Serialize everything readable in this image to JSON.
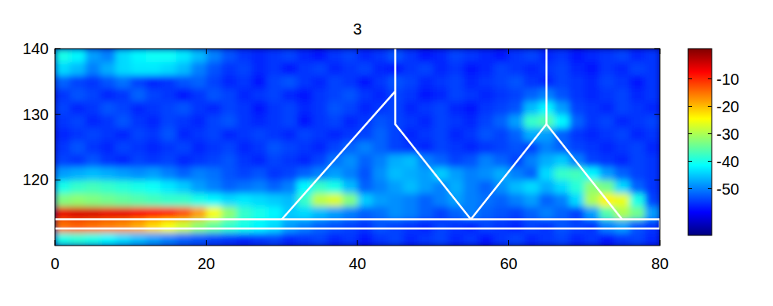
{
  "chart_data": {
    "type": "heatmap",
    "title": "3",
    "xlim": [
      0,
      80
    ],
    "xticks": [
      0,
      20,
      40,
      60,
      80
    ],
    "ylim": [
      110,
      140
    ],
    "yticks": [
      120,
      130,
      140
    ],
    "colorbar_lim": [
      -67,
      1
    ],
    "colorbar_ticks": [
      -10,
      -20,
      -30,
      -40,
      -50
    ],
    "x": [
      1,
      3,
      5,
      7,
      9,
      11,
      13,
      15,
      17,
      19,
      21,
      23,
      25,
      27,
      29,
      31,
      33,
      35,
      37,
      39,
      41,
      43,
      45,
      47,
      49,
      51,
      53,
      55,
      57,
      59,
      61,
      63,
      65,
      67,
      69,
      71,
      73,
      75,
      77,
      79
    ],
    "y": [
      111,
      113,
      115,
      117,
      119,
      121,
      123,
      125,
      127,
      129,
      131,
      133,
      135,
      137,
      139
    ],
    "z": [
      [
        -40,
        -39,
        -40,
        -42,
        -44,
        -46,
        -48,
        -50,
        -52,
        -53,
        -54,
        -55,
        -56,
        -55,
        -54,
        -56,
        -55,
        -54,
        -56,
        -55,
        -57,
        -55,
        -54,
        -56,
        -55,
        -54,
        -56,
        -55,
        -57,
        -55,
        -54,
        -56,
        -55,
        -54,
        -56,
        -55,
        -57,
        -55,
        -54,
        -56
      ],
      [
        -15,
        -14,
        -15,
        -16,
        -17,
        -19,
        -22,
        -25,
        -28,
        -32,
        -35,
        -38,
        -40,
        -42,
        -44,
        -48,
        -50,
        -52,
        -53,
        -54,
        -55,
        -53,
        -54,
        -55,
        -56,
        -54,
        -55,
        -56,
        -54,
        -55,
        -56,
        -54,
        -55,
        -53,
        -54,
        -55,
        -50,
        -48,
        -53,
        -55
      ],
      [
        -6,
        -5,
        -5,
        -6,
        -6,
        -7,
        -8,
        -10,
        -13,
        -18,
        -25,
        -32,
        -38,
        -40,
        -42,
        -45,
        -44,
        -46,
        -48,
        -50,
        -52,
        -51,
        -49,
        -50,
        -52,
        -54,
        -52,
        -50,
        -52,
        -53,
        -54,
        -52,
        -50,
        -52,
        -54,
        -48,
        -36,
        -30,
        -34,
        -48
      ],
      [
        -33,
        -32,
        -33,
        -34,
        -35,
        -36,
        -37,
        -38,
        -38,
        -40,
        -42,
        -44,
        -43,
        -44,
        -45,
        -46,
        -38,
        -29,
        -27,
        -33,
        -45,
        -48,
        -49,
        -50,
        -52,
        -50,
        -48,
        -50,
        -51,
        -52,
        -50,
        -48,
        -52,
        -50,
        -44,
        -30,
        -24,
        -26,
        -40,
        -54
      ],
      [
        -40,
        -38,
        -37,
        -38,
        -39,
        -40,
        -41,
        -43,
        -45,
        -48,
        -50,
        -52,
        -51,
        -50,
        -52,
        -50,
        -42,
        -38,
        -40,
        -46,
        -52,
        -50,
        -48,
        -46,
        -48,
        -50,
        -47,
        -50,
        -52,
        -49,
        -46,
        -44,
        -47,
        -44,
        -39,
        -32,
        -34,
        -44,
        -52,
        -55
      ],
      [
        -48,
        -47,
        -46,
        -47,
        -48,
        -49,
        -48,
        -50,
        -52,
        -50,
        -51,
        -53,
        -54,
        -53,
        -55,
        -54,
        -52,
        -50,
        -48,
        -50,
        -53,
        -49,
        -46,
        -47,
        -48,
        -45,
        -48,
        -50,
        -49,
        -47,
        -50,
        -52,
        -44,
        -38,
        -37,
        -42,
        -48,
        -52,
        -54,
        -55
      ],
      [
        -54,
        -55,
        -53,
        -55,
        -56,
        -54,
        -55,
        -54,
        -56,
        -55,
        -54,
        -53,
        -55,
        -56,
        -54,
        -55,
        -56,
        -54,
        -51,
        -49,
        -52,
        -50,
        -47,
        -46,
        -50,
        -52,
        -54,
        -53,
        -50,
        -52,
        -54,
        -50,
        -47,
        -45,
        -50,
        -54,
        -55,
        -56,
        -54,
        -55
      ],
      [
        -55,
        -53,
        -55,
        -56,
        -54,
        -55,
        -56,
        -55,
        -54,
        -56,
        -55,
        -54,
        -56,
        -55,
        -53,
        -54,
        -55,
        -56,
        -54,
        -52,
        -50,
        -52,
        -54,
        -55,
        -56,
        -54,
        -55,
        -56,
        -55,
        -54,
        -53,
        -54,
        -50,
        -52,
        -54,
        -55,
        -56,
        -55,
        -54,
        -56
      ],
      [
        -56,
        -55,
        -54,
        -55,
        -56,
        -54,
        -55,
        -53,
        -56,
        -55,
        -54,
        -56,
        -55,
        -54,
        -55,
        -56,
        -54,
        -55,
        -56,
        -55,
        -54,
        -52,
        -54,
        -56,
        -55,
        -54,
        -56,
        -55,
        -53,
        -54,
        -52,
        -47,
        -48,
        -52,
        -55,
        -56,
        -55,
        -54,
        -56,
        -55
      ],
      [
        -55,
        -54,
        -56,
        -55,
        -53,
        -55,
        -56,
        -54,
        -55,
        -56,
        -54,
        -53,
        -55,
        -56,
        -55,
        -54,
        -57,
        -55,
        -54,
        -56,
        -55,
        -53,
        -54,
        -55,
        -56,
        -54,
        -55,
        -56,
        -54,
        -52,
        -48,
        -38,
        -36,
        -42,
        -52,
        -55,
        -54,
        -56,
        -55,
        -54
      ],
      [
        -54,
        -56,
        -55,
        -53,
        -54,
        -56,
        -55,
        -54,
        -53,
        -55,
        -56,
        -54,
        -55,
        -57,
        -55,
        -54,
        -56,
        -55,
        -53,
        -54,
        -56,
        -55,
        -54,
        -56,
        -55,
        -54,
        -56,
        -57,
        -55,
        -54,
        -53,
        -46,
        -42,
        -48,
        -54,
        -55,
        -56,
        -54,
        -55,
        -56
      ],
      [
        -55,
        -53,
        -54,
        -56,
        -55,
        -52,
        -54,
        -55,
        -57,
        -55,
        -53,
        -54,
        -56,
        -55,
        -54,
        -56,
        -57,
        -55,
        -54,
        -53,
        -55,
        -56,
        -54,
        -55,
        -57,
        -56,
        -54,
        -55,
        -56,
        -55,
        -54,
        -52,
        -50,
        -53,
        -55,
        -56,
        -55,
        -54,
        -56,
        -55
      ],
      [
        -52,
        -54,
        -55,
        -53,
        -51,
        -54,
        -56,
        -55,
        -53,
        -52,
        -54,
        -56,
        -55,
        -57,
        -54,
        -53,
        -55,
        -56,
        -54,
        -55,
        -57,
        -55,
        -53,
        -54,
        -56,
        -55,
        -54,
        -56,
        -55,
        -54,
        -53,
        -55,
        -56,
        -54,
        -55,
        -56,
        -54,
        -55,
        -57,
        -55
      ],
      [
        -44,
        -46,
        -50,
        -47,
        -44,
        -43,
        -43,
        -44,
        -46,
        -50,
        -53,
        -55,
        -54,
        -56,
        -55,
        -57,
        -55,
        -54,
        -56,
        -55,
        -54,
        -56,
        -57,
        -55,
        -54,
        -56,
        -55,
        -57,
        -56,
        -54,
        -55,
        -56,
        -55,
        -54,
        -56,
        -57,
        -55,
        -56,
        -54,
        -55
      ],
      [
        -40,
        -42,
        -48,
        -50,
        -44,
        -42,
        -41,
        -41,
        -43,
        -46,
        -50,
        -53,
        -55,
        -56,
        -55,
        -54,
        -56,
        -57,
        -55,
        -54,
        -56,
        -55,
        -53,
        -55,
        -57,
        -56,
        -54,
        -55,
        -56,
        -57,
        -55,
        -54,
        -56,
        -55,
        -57,
        -56,
        -55,
        -54,
        -56,
        -55
      ]
    ],
    "overlay_lines": [
      {
        "x": [
          0,
          80,
          80,
          0
        ],
        "y": [
          114,
          114,
          112.6,
          112.6
        ]
      },
      {
        "x": [
          30,
          45
        ],
        "y": [
          114,
          133.5
        ]
      },
      {
        "x": [
          45,
          45,
          55
        ],
        "y": [
          140,
          128.5,
          114
        ]
      },
      {
        "x": [
          55,
          65,
          75
        ],
        "y": [
          114,
          128.5,
          114
        ]
      },
      {
        "x": [
          65,
          65
        ],
        "y": [
          140,
          128.5
        ]
      }
    ]
  }
}
